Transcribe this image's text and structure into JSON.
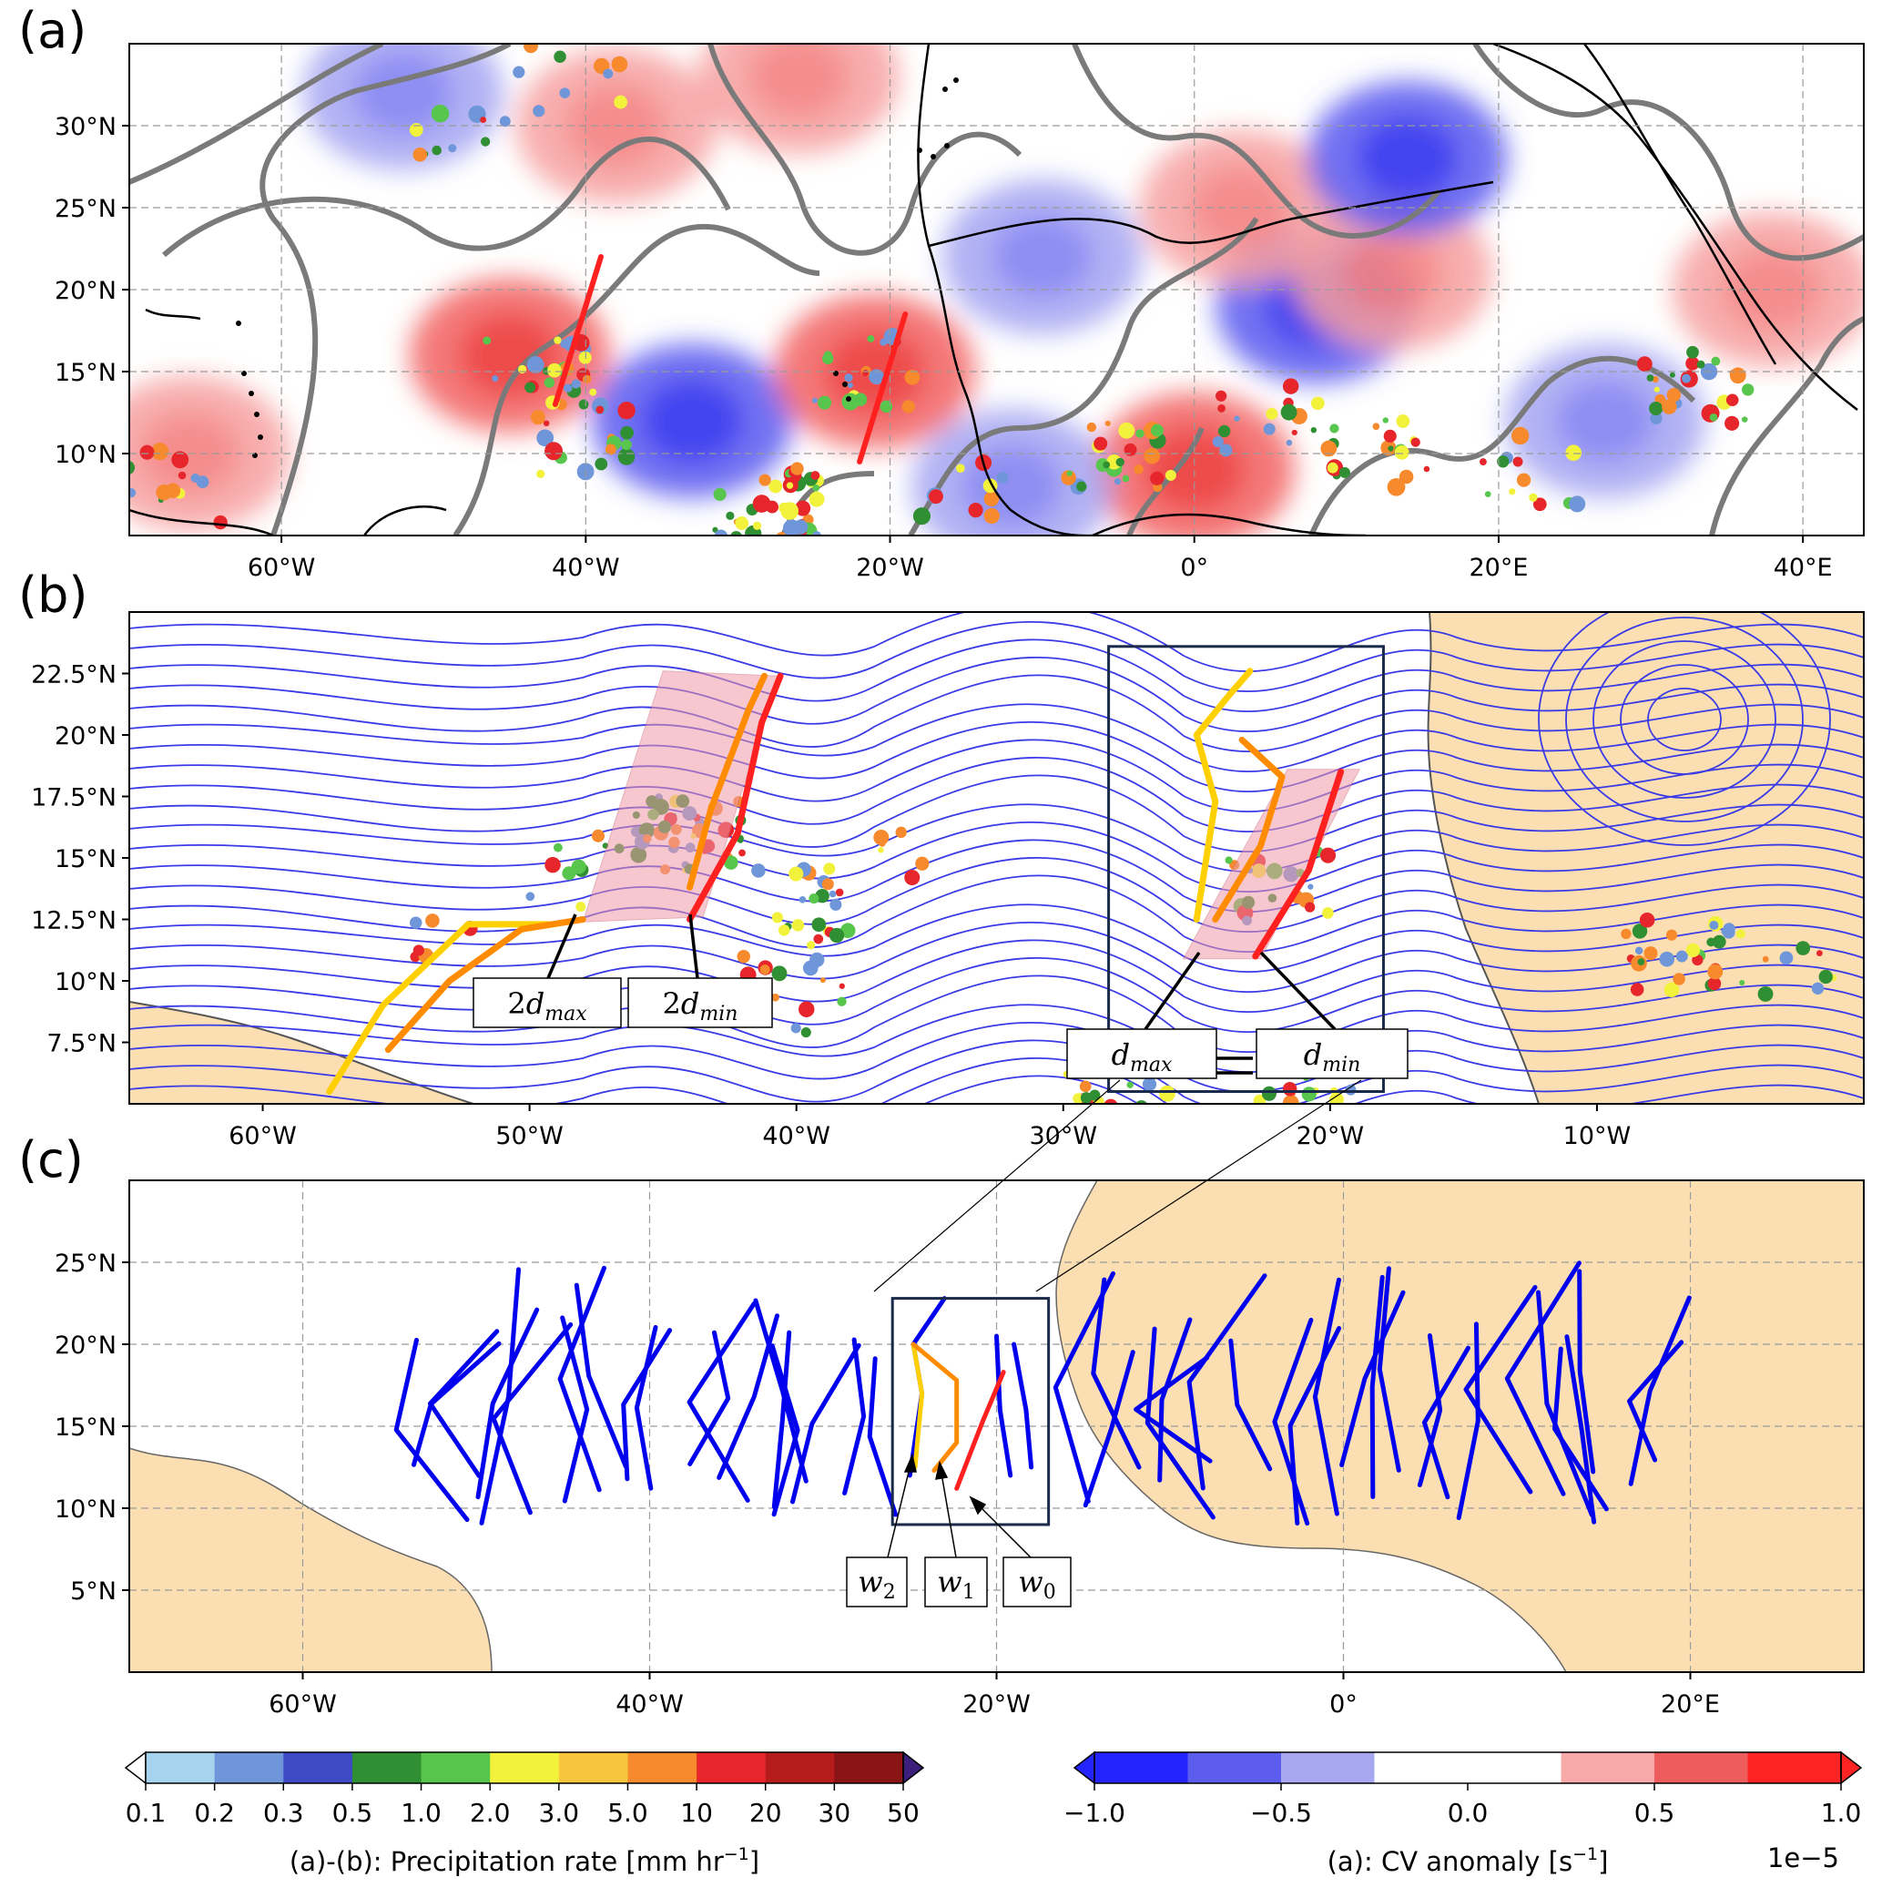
{
  "panels": {
    "a": {
      "label": "(a)"
    },
    "b": {
      "label": "(b)"
    },
    "c": {
      "label": "(c)"
    }
  },
  "chart_data": [
    {
      "panel": "a",
      "type": "heatmap",
      "lat_ticks": [
        "30°N",
        "25°N",
        "20°N",
        "15°N",
        "10°N"
      ],
      "lat_values": [
        30,
        25,
        20,
        15,
        10
      ],
      "lon_ticks": [
        "60°W",
        "40°W",
        "20°W",
        "0°",
        "20°E",
        "40°E"
      ],
      "lon_values": [
        -60,
        -40,
        -20,
        0,
        20,
        40
      ],
      "xlim": [
        -70,
        44
      ],
      "ylim": [
        5,
        35
      ],
      "grid": true,
      "cv_anomaly_blobs": [
        {
          "lon": -52,
          "lat": 32,
          "value": -0.5
        },
        {
          "lon": -38,
          "lat": 30,
          "value": 0.5
        },
        {
          "lon": -45,
          "lat": 16,
          "value": 0.75
        },
        {
          "lon": -33,
          "lat": 12,
          "value": -0.75
        },
        {
          "lon": -21,
          "lat": 15,
          "value": 0.75
        },
        {
          "lon": -26,
          "lat": 33,
          "value": 0.5
        },
        {
          "lon": -10,
          "lat": 22,
          "value": -0.5
        },
        {
          "lon": 8,
          "lat": 19,
          "value": -0.75
        },
        {
          "lon": 3,
          "lat": 25,
          "value": 0.5
        },
        {
          "lon": 13,
          "lat": 21,
          "value": 0.5
        },
        {
          "lon": 0,
          "lat": 9,
          "value": 0.75
        },
        {
          "lon": -12,
          "lat": 8,
          "value": -0.5
        },
        {
          "lon": 14,
          "lat": 28,
          "value": -0.75
        },
        {
          "lon": 38,
          "lat": 20,
          "value": 0.5
        },
        {
          "lon": 27,
          "lat": 12,
          "value": -0.5
        },
        {
          "lon": -66,
          "lat": 10,
          "value": 0.5
        }
      ],
      "wave_axes": [
        {
          "color": "#ff2020",
          "points": [
            [
              -39,
              22
            ],
            [
              -42,
              13
            ]
          ]
        },
        {
          "color": "#ff2020",
          "points": [
            [
              -19,
              18.5
            ],
            [
              -22,
              9.5
            ]
          ]
        }
      ]
    },
    {
      "panel": "b",
      "type": "line",
      "lat_ticks": [
        "22.5°N",
        "20°N",
        "17.5°N",
        "15°N",
        "12.5°N",
        "10°N",
        "7.5°N"
      ],
      "lat_values": [
        22.5,
        20,
        17.5,
        15,
        12.5,
        10,
        7.5
      ],
      "lon_ticks": [
        "60°W",
        "50°W",
        "40°W",
        "30°W",
        "20°W",
        "10°W"
      ],
      "lon_values": [
        -60,
        -50,
        -40,
        -30,
        -20,
        -10
      ],
      "xlim": [
        -65,
        0
      ],
      "ylim": [
        5,
        25
      ],
      "annotations": [
        "2d_max",
        "2d_min",
        "d_max",
        "d_min"
      ],
      "annotation_text": {
        "two_d_max": {
          "coef": "2",
          "base": "d",
          "sub": "max"
        },
        "two_d_min": {
          "coef": "2",
          "base": "d",
          "sub": "min"
        },
        "d_max": {
          "coef": "",
          "base": "d",
          "sub": "max"
        },
        "d_min": {
          "coef": "",
          "base": "d",
          "sub": "min"
        }
      },
      "trough_lines": [
        {
          "color": "#ffd000",
          "points": [
            [
              -57.5,
              5.5
            ],
            [
              -55.5,
              9
            ],
            [
              -52.3,
              12.3
            ],
            [
              -49.3,
              12.3
            ]
          ]
        },
        {
          "color": "#ff8c00",
          "points": [
            [
              -55.3,
              7.2
            ],
            [
              -53,
              10
            ],
            [
              -50.3,
              12.1
            ],
            [
              -48,
              12.5
            ]
          ]
        },
        {
          "color": "#ff8c00",
          "points": [
            [
              -44,
              13.8
            ],
            [
              -43.2,
              17
            ],
            [
              -41.8,
              21
            ],
            [
              -41.2,
              22.4
            ]
          ]
        },
        {
          "color": "#ff2020",
          "points": [
            [
              -44,
              12.5
            ],
            [
              -42.2,
              16
            ],
            [
              -41.3,
              20.5
            ],
            [
              -40.6,
              22.4
            ]
          ]
        },
        {
          "color": "#ffd000",
          "points": [
            [
              -25,
              12.5
            ],
            [
              -24.3,
              17.3
            ],
            [
              -25,
              20
            ],
            [
              -23.8,
              21.6
            ],
            [
              -23,
              22.6
            ]
          ]
        },
        {
          "color": "#ff8c00",
          "points": [
            [
              -24.3,
              12.5
            ],
            [
              -22.6,
              15.5
            ],
            [
              -21.8,
              18.3
            ],
            [
              -23.3,
              19.8
            ]
          ]
        },
        {
          "color": "#ff2020",
          "points": [
            [
              -22.8,
              11
            ],
            [
              -20.8,
              14.5
            ],
            [
              -19.6,
              18.5
            ]
          ]
        }
      ],
      "shaded_regions": [
        [
          [
            -48,
            12.4
          ],
          [
            -43.5,
            12.6
          ],
          [
            -40.7,
            22.4
          ],
          [
            -45,
            22.6
          ]
        ],
        [
          [
            -25.5,
            10.9
          ],
          [
            -22.6,
            10.9
          ],
          [
            -18.9,
            18.6
          ],
          [
            -21.6,
            18.6
          ]
        ]
      ],
      "analysis_box": [
        [
          -28.3,
          5.5
        ],
        [
          -18,
          23.6
        ]
      ]
    },
    {
      "panel": "c",
      "type": "line",
      "lat_ticks": [
        "25°N",
        "20°N",
        "15°N",
        "10°N",
        "5°N"
      ],
      "lat_values": [
        25,
        20,
        15,
        10,
        5
      ],
      "lon_ticks": [
        "60°W",
        "40°W",
        "20°W",
        "0°",
        "20°E"
      ],
      "lon_values": [
        -60,
        -40,
        -20,
        0,
        20
      ],
      "xlim": [
        -70,
        30
      ],
      "ylim": [
        0,
        30
      ],
      "grid": true,
      "labels": {
        "w2": {
          "base": "w",
          "sub": "2"
        },
        "w1": {
          "base": "w",
          "sub": "1"
        },
        "w0": {
          "base": "w",
          "sub": "0"
        }
      },
      "track_color": "#0000ee",
      "tracks_lon_range": [
        -54,
        18
      ],
      "tracks_lat_range": [
        9,
        25
      ],
      "highlighted": [
        {
          "name": "w2",
          "color": "#ffd000",
          "points": [
            [
              -24.8,
              20
            ],
            [
              -24.3,
              17
            ],
            [
              -24.7,
              12.5
            ]
          ]
        },
        {
          "name": "w1",
          "color": "#ff8c00",
          "points": [
            [
              -24.8,
              20
            ],
            [
              -22.3,
              17.8
            ],
            [
              -22.3,
              14
            ],
            [
              -23.6,
              12.3
            ]
          ]
        },
        {
          "name": "w0",
          "color": "#ff2020",
          "points": [
            [
              -19.6,
              18.3
            ],
            [
              -20.8,
              15.3
            ],
            [
              -22.3,
              11.2
            ]
          ]
        }
      ],
      "analysis_box": [
        [
          -26,
          9
        ],
        [
          -17,
          22.8
        ]
      ]
    }
  ],
  "colorbar_precip": {
    "label_prefix": "(a)-(b): Precipitation rate [mm hr",
    "label_sup": "−1",
    "label_suffix": "]",
    "ticks": [
      "0.1",
      "0.2",
      "0.3",
      "0.5",
      "1.0",
      "2.0",
      "3.0",
      "5.0",
      "10",
      "20",
      "30",
      "50"
    ],
    "colors": [
      "#a6d4ee",
      "#6f96d8",
      "#3f4bc6",
      "#2f8f32",
      "#58c64c",
      "#f2f23c",
      "#f6c73c",
      "#f68a2c",
      "#e6262a",
      "#b71c1c",
      "#8b1414"
    ],
    "under_color": "#ffffff",
    "over_color": "#3b1f7a"
  },
  "colorbar_cv": {
    "label_prefix": "(a): CV anomaly [s",
    "label_sup": "−1",
    "label_suffix": "]",
    "ticks": [
      "−1.0",
      "−0.5",
      "0.0",
      "0.5",
      "1.0"
    ],
    "tick_values": [
      -1.0,
      -0.5,
      0.0,
      0.5,
      1.0
    ],
    "colors": [
      "#2424ff",
      "#5c5cee",
      "#a8a8f0",
      "#ffffff",
      "#ffffff",
      "#f7a8a8",
      "#ee5c5c",
      "#ff2424"
    ],
    "exponent": "1e−5"
  }
}
